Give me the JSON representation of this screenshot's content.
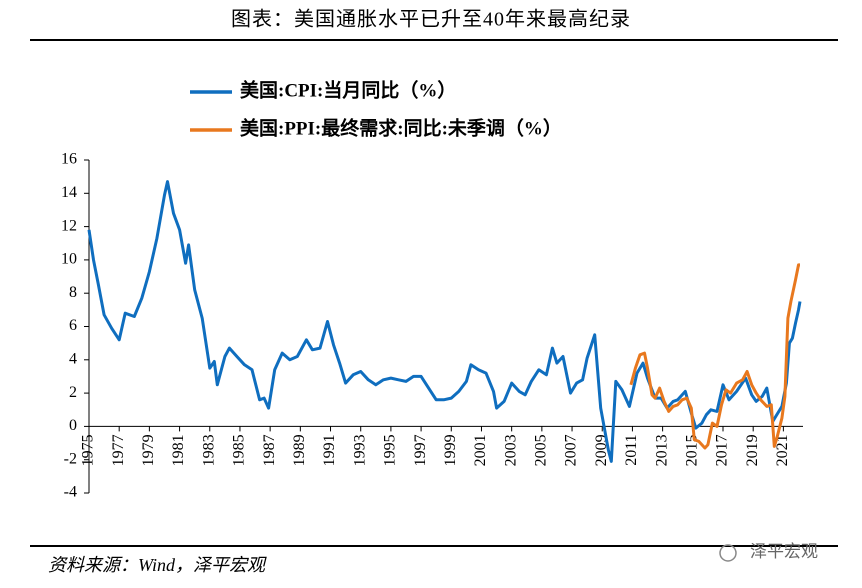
{
  "chart_data": {
    "type": "line",
    "title": "图表：美国通胀水平已升至40年来最高纪录",
    "source": "资料来源：Wind，泽平宏观",
    "watermark": "泽平宏观",
    "xlim": [
      1975,
      2022.3
    ],
    "xticks": [
      1975,
      1977,
      1979,
      1981,
      1983,
      1985,
      1987,
      1989,
      1991,
      1993,
      1995,
      1997,
      1999,
      2001,
      2003,
      2005,
      2007,
      2009,
      2011,
      2013,
      2015,
      2017,
      2019,
      2021
    ],
    "ylim": [
      -4,
      16
    ],
    "yticks": [
      -4,
      -2,
      0,
      2,
      4,
      6,
      8,
      10,
      12,
      14,
      16
    ],
    "legend": "top-left",
    "series": [
      {
        "name": "美国:CPI:当月同比（%）",
        "color": "#0f6ebf",
        "x": [
          1975.0,
          1975.3,
          1975.6,
          1976.0,
          1976.5,
          1977.0,
          1977.4,
          1978.0,
          1978.5,
          1979.0,
          1979.5,
          1980.0,
          1980.2,
          1980.6,
          1981.0,
          1981.4,
          1981.6,
          1982.0,
          1982.5,
          1983.0,
          1983.3,
          1983.5,
          1984.0,
          1984.3,
          1984.8,
          1985.3,
          1985.8,
          1986.3,
          1986.6,
          1986.9,
          1987.3,
          1987.8,
          1988.3,
          1988.8,
          1989.4,
          1989.8,
          1990.3,
          1990.8,
          1991.2,
          1991.6,
          1992.0,
          1992.5,
          1993.0,
          1993.5,
          1994.0,
          1994.5,
          1995.0,
          1995.5,
          1996.0,
          1996.5,
          1997.0,
          1997.5,
          1998.0,
          1998.5,
          1999.0,
          1999.5,
          2000.0,
          2000.3,
          2000.8,
          2001.3,
          2001.8,
          2002.0,
          2002.5,
          2003.0,
          2003.5,
          2003.9,
          2004.3,
          2004.8,
          2005.3,
          2005.7,
          2006.0,
          2006.4,
          2006.9,
          2007.3,
          2007.7,
          2008.0,
          2008.5,
          2008.9,
          2009.4,
          2009.6,
          2009.9,
          2010.3,
          2010.8,
          2011.3,
          2011.7,
          2012.0,
          2012.5,
          2012.9,
          2013.3,
          2013.7,
          2014.0,
          2014.5,
          2014.9,
          2015.2,
          2015.6,
          2015.9,
          2016.2,
          2016.6,
          2017.0,
          2017.4,
          2017.9,
          2018.5,
          2018.9,
          2019.2,
          2019.6,
          2019.9,
          2020.3,
          2020.5,
          2020.9,
          2021.2,
          2021.4,
          2021.6,
          2021.8,
          2022.0,
          2022.1
        ],
        "values": [
          11.8,
          10,
          8.6,
          6.7,
          5.9,
          5.2,
          6.8,
          6.6,
          7.7,
          9.3,
          11.3,
          13.9,
          14.7,
          12.8,
          11.8,
          9.8,
          10.9,
          8.2,
          6.5,
          3.5,
          3.9,
          2.5,
          4.2,
          4.7,
          4.2,
          3.7,
          3.4,
          1.6,
          1.7,
          1.1,
          3.4,
          4.4,
          4.0,
          4.2,
          5.2,
          4.6,
          4.7,
          6.3,
          4.9,
          3.8,
          2.6,
          3.1,
          3.3,
          2.8,
          2.5,
          2.8,
          2.9,
          2.8,
          2.7,
          3.0,
          3.0,
          2.3,
          1.6,
          1.6,
          1.7,
          2.1,
          2.7,
          3.7,
          3.4,
          3.2,
          2.1,
          1.1,
          1.5,
          2.6,
          2.1,
          1.9,
          2.7,
          3.4,
          3.1,
          4.7,
          3.8,
          4.2,
          2.0,
          2.6,
          2.8,
          4.1,
          5.5,
          1.1,
          -1.4,
          -2.1,
          2.7,
          2.2,
          1.2,
          3.2,
          3.8,
          2.9,
          1.7,
          1.7,
          1.1,
          1.5,
          1.6,
          2.1,
          0.8,
          -0.1,
          0.2,
          0.7,
          1.0,
          0.9,
          2.5,
          1.6,
          2.1,
          2.9,
          1.9,
          1.5,
          1.8,
          2.3,
          0.3,
          0.6,
          1.2,
          2.6,
          5.0,
          5.3,
          6.2,
          7.0,
          7.5
        ]
      },
      {
        "name": "美国:PPI:最终需求:同比:未季调（%）",
        "color": "#e8781e",
        "x": [
          2010.9,
          2011.2,
          2011.5,
          2011.8,
          2012.0,
          2012.3,
          2012.5,
          2012.8,
          2013.1,
          2013.4,
          2013.7,
          2014.0,
          2014.3,
          2014.6,
          2014.9,
          2015.1,
          2015.4,
          2015.8,
          2016.0,
          2016.3,
          2016.6,
          2016.9,
          2017.2,
          2017.5,
          2017.9,
          2018.3,
          2018.6,
          2018.9,
          2019.2,
          2019.5,
          2019.9,
          2020.2,
          2020.4,
          2020.6,
          2020.9,
          2021.1,
          2021.3,
          2021.5,
          2021.8,
          2022.0,
          2022.1
        ],
        "values": [
          2.5,
          3.5,
          4.3,
          4.4,
          3.5,
          1.9,
          1.7,
          2.3,
          1.5,
          0.9,
          1.2,
          1.3,
          1.6,
          1.7,
          1.1,
          -0.8,
          -0.9,
          -1.3,
          -1.1,
          0.2,
          0.0,
          1.3,
          2.2,
          2.0,
          2.6,
          2.8,
          3.3,
          2.5,
          2.0,
          1.6,
          1.2,
          1.3,
          -1.2,
          -0.6,
          0.5,
          1.8,
          6.5,
          7.5,
          8.8,
          9.7,
          9.7
        ]
      }
    ]
  }
}
